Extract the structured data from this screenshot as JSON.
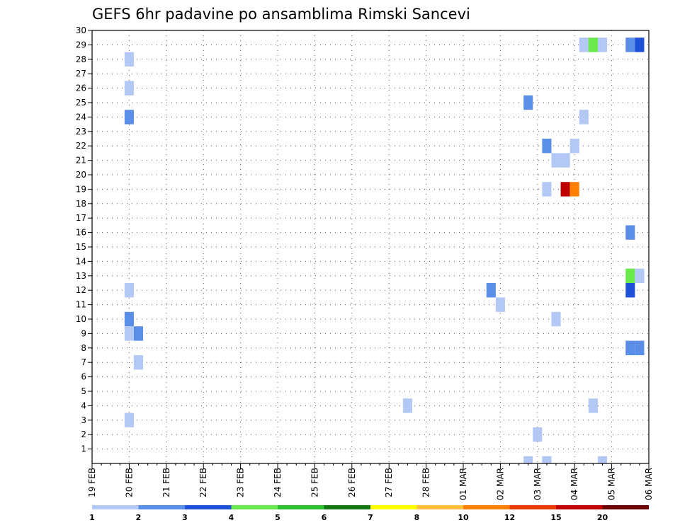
{
  "chart_data": {
    "type": "heatmap",
    "title": "GEFS 6hr padavine po ansamblima Rimski Sancevi",
    "xlabel": "",
    "ylabel": "",
    "x_tick_labels": [
      "19 FEB",
      "20 FEB",
      "21 FEB",
      "22 FEB",
      "23 FEB",
      "24 FEB",
      "25 FEB",
      "26 FEB",
      "27 FEB",
      "28 FEB",
      "01 MAR",
      "02 MAR",
      "03 MAR",
      "04 MAR",
      "05 MAR",
      "06 MAR"
    ],
    "x_step": "6hr",
    "xlim_days": [
      0,
      15
    ],
    "y_ticks": [
      1,
      2,
      3,
      4,
      5,
      6,
      7,
      8,
      9,
      10,
      11,
      12,
      13,
      14,
      15,
      16,
      17,
      18,
      19,
      20,
      21,
      22,
      23,
      24,
      25,
      26,
      27,
      28,
      29,
      30
    ],
    "ylim": [
      0,
      30
    ],
    "grid": true,
    "legend": {
      "placement": "bottom",
      "labels": [
        "1",
        "2",
        "3",
        "4",
        "5",
        "6",
        "7",
        "8",
        "10",
        "12",
        "15",
        "20"
      ],
      "colors": [
        "#b3c8f5",
        "#5b8ee8",
        "#1e50d8",
        "#6ae84c",
        "#2cc12c",
        "#137813",
        "#ffff00",
        "#ffbe3c",
        "#ff8000",
        "#ea3c00",
        "#c00000",
        "#6e0000"
      ]
    },
    "cells": [
      {
        "member": 28,
        "day": 1.0,
        "class": 1
      },
      {
        "member": 26,
        "day": 1.0,
        "class": 1
      },
      {
        "member": 24,
        "day": 1.0,
        "class": 2
      },
      {
        "member": 12,
        "day": 1.0,
        "class": 1
      },
      {
        "member": 10,
        "day": 1.0,
        "class": 2
      },
      {
        "member": 9,
        "day": 1.0,
        "class": 1
      },
      {
        "member": 9,
        "day": 1.25,
        "class": 2
      },
      {
        "member": 7,
        "day": 1.25,
        "class": 1
      },
      {
        "member": 3,
        "day": 1.0,
        "class": 1
      },
      {
        "member": 4,
        "day": 8.5,
        "class": 1
      },
      {
        "member": 12,
        "day": 10.75,
        "class": 2
      },
      {
        "member": 11,
        "day": 11.0,
        "class": 1
      },
      {
        "member": 25,
        "day": 11.75,
        "class": 2
      },
      {
        "member": 2,
        "day": 12.0,
        "class": 1
      },
      {
        "member": 22,
        "day": 12.25,
        "class": 2
      },
      {
        "member": 19,
        "day": 12.25,
        "class": 1
      },
      {
        "member": 21,
        "day": 12.5,
        "class": 1
      },
      {
        "member": 21,
        "day": 12.75,
        "class": 1
      },
      {
        "member": 10,
        "day": 12.5,
        "class": 1
      },
      {
        "member": 22,
        "day": 13.0,
        "class": 1
      },
      {
        "member": 19,
        "day": 12.75,
        "class": 11
      },
      {
        "member": 19,
        "day": 13.0,
        "class": 9
      },
      {
        "member": 24,
        "day": 13.25,
        "class": 1
      },
      {
        "member": 29,
        "day": 13.25,
        "class": 1
      },
      {
        "member": 29,
        "day": 13.5,
        "class": 4
      },
      {
        "member": 29,
        "day": 13.75,
        "class": 1
      },
      {
        "member": 4,
        "day": 13.5,
        "class": 1
      },
      {
        "member": 29,
        "day": 14.5,
        "class": 2
      },
      {
        "member": 29,
        "day": 14.75,
        "class": 3
      },
      {
        "member": 16,
        "day": 14.5,
        "class": 2
      },
      {
        "member": 13,
        "day": 14.5,
        "class": 4
      },
      {
        "member": 13,
        "day": 14.75,
        "class": 1
      },
      {
        "member": 12,
        "day": 14.5,
        "class": 3
      },
      {
        "member": 8,
        "day": 14.5,
        "class": 2
      },
      {
        "member": 8,
        "day": 14.75,
        "class": 2
      },
      {
        "member": 0,
        "day": 11.75,
        "class": 1
      },
      {
        "member": 0,
        "day": 12.25,
        "class": 1
      },
      {
        "member": 0,
        "day": 13.75,
        "class": 1
      }
    ]
  }
}
